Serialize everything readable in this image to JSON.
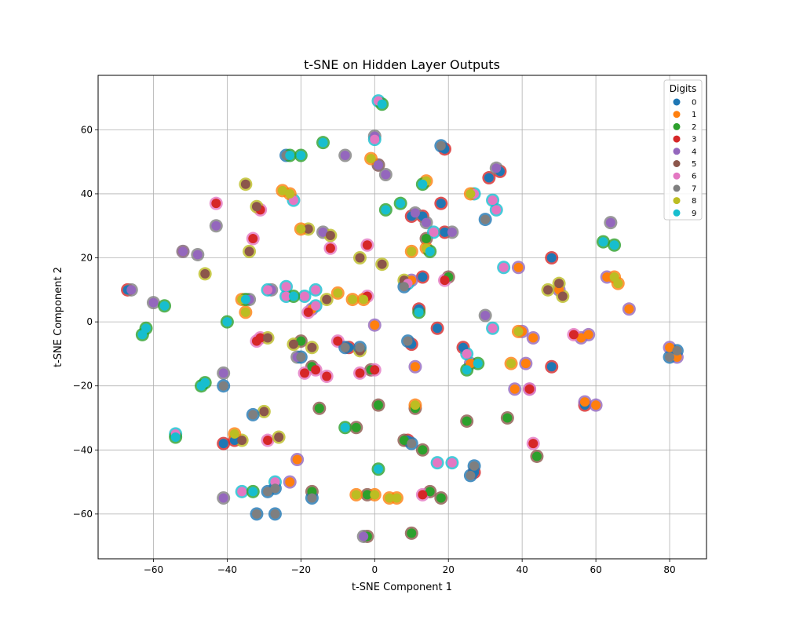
{
  "chart_data": {
    "type": "scatter",
    "title": "t-SNE on Hidden Layer Outputs",
    "xlabel": "t-SNE Component 1",
    "ylabel": "t-SNE Component 2",
    "xlim": [
      -75,
      90
    ],
    "ylim": [
      -74,
      77
    ],
    "xticks": [
      -60,
      -40,
      -20,
      0,
      20,
      40,
      60,
      80
    ],
    "yticks": [
      -60,
      -40,
      -20,
      0,
      20,
      40,
      60
    ],
    "grid": true,
    "legend": {
      "title": "Digits",
      "placement": "top-right"
    },
    "series": [
      {
        "name": "0",
        "color": "#1f77b4",
        "points": [
          [
            -41,
            -38
          ],
          [
            -38,
            -37
          ],
          [
            -7,
            -8
          ],
          [
            10,
            -7
          ],
          [
            9,
            -37
          ],
          [
            18,
            37
          ],
          [
            19,
            54
          ],
          [
            10,
            33
          ],
          [
            13,
            33
          ],
          [
            13,
            14
          ],
          [
            24,
            -8
          ],
          [
            27,
            -47
          ],
          [
            34,
            47
          ],
          [
            31,
            45
          ],
          [
            48,
            20
          ],
          [
            48,
            -14
          ],
          [
            57,
            -26
          ],
          [
            1,
            49
          ],
          [
            -67,
            10
          ],
          [
            12,
            4
          ],
          [
            19,
            28
          ],
          [
            17,
            -2
          ]
        ]
      },
      {
        "name": "1",
        "color": "#ff7f0e",
        "points": [
          [
            -21,
            -43
          ],
          [
            -23,
            -50
          ],
          [
            11,
            -14
          ],
          [
            26,
            -13
          ],
          [
            39,
            17
          ],
          [
            40,
            -3
          ],
          [
            43,
            -5
          ],
          [
            38,
            -21
          ],
          [
            41,
            -13
          ],
          [
            42,
            -21
          ],
          [
            56,
            -5
          ],
          [
            58,
            -4
          ],
          [
            57,
            -25
          ],
          [
            60,
            -26
          ],
          [
            63,
            14
          ],
          [
            69,
            4
          ],
          [
            80,
            -8
          ],
          [
            82,
            -11
          ],
          [
            0,
            -1
          ],
          [
            -17,
            4
          ],
          [
            50,
            10
          ],
          [
            10,
            13
          ]
        ]
      },
      {
        "name": "2",
        "color": "#2ca02c",
        "points": [
          [
            -15,
            -27
          ],
          [
            -17,
            -53
          ],
          [
            -5,
            -33
          ],
          [
            1,
            -26
          ],
          [
            11,
            -27
          ],
          [
            13,
            -40
          ],
          [
            15,
            -53
          ],
          [
            18,
            -55
          ],
          [
            25,
            -31
          ],
          [
            36,
            -30
          ],
          [
            44,
            -42
          ],
          [
            -2,
            -67
          ],
          [
            10,
            -66
          ],
          [
            -17,
            -14
          ],
          [
            -20,
            -6
          ],
          [
            14,
            26
          ],
          [
            20,
            14
          ],
          [
            -1,
            -15
          ],
          [
            -2,
            -54
          ],
          [
            8,
            -37
          ]
        ]
      },
      {
        "name": "3",
        "color": "#d62728",
        "points": [
          [
            -52,
            22
          ],
          [
            -43,
            37
          ],
          [
            -33,
            26
          ],
          [
            -31,
            35
          ],
          [
            -32,
            -6
          ],
          [
            -29,
            -37
          ],
          [
            -19,
            -16
          ],
          [
            -16,
            -15
          ],
          [
            -13,
            -17
          ],
          [
            -18,
            3
          ],
          [
            -12,
            23
          ],
          [
            -2,
            24
          ],
          [
            -4,
            -16
          ],
          [
            0,
            -15
          ],
          [
            -2,
            8
          ],
          [
            13,
            -54
          ],
          [
            19,
            13
          ],
          [
            42,
            -21
          ],
          [
            43,
            -38
          ],
          [
            54,
            -4
          ],
          [
            -10,
            -6
          ],
          [
            -31,
            -5
          ]
        ]
      },
      {
        "name": "4",
        "color": "#9467bd",
        "points": [
          [
            -66,
            10
          ],
          [
            -60,
            6
          ],
          [
            -52,
            22
          ],
          [
            -48,
            21
          ],
          [
            -43,
            30
          ],
          [
            -41,
            -55
          ],
          [
            -41,
            -16
          ],
          [
            -28,
            10
          ],
          [
            -21,
            -11
          ],
          [
            -14,
            28
          ],
          [
            -8,
            52
          ],
          [
            0,
            58
          ],
          [
            1,
            49
          ],
          [
            3,
            46
          ],
          [
            11,
            34
          ],
          [
            14,
            31
          ],
          [
            21,
            28
          ],
          [
            30,
            2
          ],
          [
            33,
            48
          ],
          [
            64,
            31
          ],
          [
            -3,
            -67
          ],
          [
            -34,
            7
          ]
        ]
      },
      {
        "name": "5",
        "color": "#8c564b",
        "points": [
          [
            -35,
            43
          ],
          [
            -32,
            36
          ],
          [
            -46,
            15
          ],
          [
            -34,
            22
          ],
          [
            -29,
            -5
          ],
          [
            -22,
            -7
          ],
          [
            -17,
            -8
          ],
          [
            -12,
            27
          ],
          [
            -18,
            29
          ],
          [
            -13,
            7
          ],
          [
            -4,
            -9
          ],
          [
            2,
            18
          ],
          [
            8,
            13
          ],
          [
            -4,
            20
          ],
          [
            50,
            12
          ],
          [
            51,
            8
          ],
          [
            47,
            10
          ],
          [
            -30,
            -28
          ],
          [
            -26,
            -36
          ],
          [
            -36,
            -37
          ]
        ]
      },
      {
        "name": "6",
        "color": "#e377c2",
        "points": [
          [
            -54,
            -35
          ],
          [
            -36,
            -53
          ],
          [
            -27,
            -50
          ],
          [
            -22,
            38
          ],
          [
            -24,
            8
          ],
          [
            -19,
            8
          ],
          [
            -16,
            10
          ],
          [
            -16,
            5
          ],
          [
            1,
            69
          ],
          [
            0,
            57
          ],
          [
            25,
            -10
          ],
          [
            33,
            35
          ],
          [
            32,
            38
          ],
          [
            27,
            40
          ],
          [
            35,
            17
          ],
          [
            17,
            -44
          ],
          [
            21,
            -44
          ],
          [
            -29,
            10
          ],
          [
            -24,
            11
          ],
          [
            9,
            12
          ],
          [
            32,
            -2
          ],
          [
            16,
            28
          ]
        ]
      },
      {
        "name": "7",
        "color": "#7f7f7f",
        "points": [
          [
            -41,
            -20
          ],
          [
            -33,
            -29
          ],
          [
            -29,
            -53
          ],
          [
            -27,
            -60
          ],
          [
            -27,
            -52
          ],
          [
            -24,
            52
          ],
          [
            -20,
            -11
          ],
          [
            -17,
            -55
          ],
          [
            -8,
            -8
          ],
          [
            -4,
            -8
          ],
          [
            9,
            -6
          ],
          [
            10,
            -38
          ],
          [
            18,
            55
          ],
          [
            27,
            -45
          ],
          [
            26,
            -48
          ],
          [
            82,
            -9
          ],
          [
            80,
            -11
          ],
          [
            -32,
            -60
          ],
          [
            8,
            11
          ],
          [
            30,
            32
          ]
        ]
      },
      {
        "name": "8",
        "color": "#bcbd22",
        "points": [
          [
            -36,
            7
          ],
          [
            -35,
            3
          ],
          [
            -25,
            41
          ],
          [
            -23,
            40
          ],
          [
            -20,
            29
          ],
          [
            -10,
            9
          ],
          [
            -6,
            7
          ],
          [
            -3,
            7
          ],
          [
            -1,
            51
          ],
          [
            0,
            -54
          ],
          [
            4,
            -55
          ],
          [
            6,
            -55
          ],
          [
            10,
            22
          ],
          [
            14,
            44
          ],
          [
            26,
            40
          ],
          [
            37,
            -13
          ],
          [
            39,
            -3
          ],
          [
            65,
            14
          ],
          [
            66,
            12
          ],
          [
            -5,
            -54
          ],
          [
            -38,
            -35
          ],
          [
            11,
            -26
          ],
          [
            14,
            23
          ]
        ]
      },
      {
        "name": "9",
        "color": "#17becf",
        "points": [
          [
            -63,
            -4
          ],
          [
            -62,
            -2
          ],
          [
            -57,
            5
          ],
          [
            -40,
            0
          ],
          [
            -47,
            -20
          ],
          [
            -46,
            -19
          ],
          [
            -35,
            7
          ],
          [
            -23,
            52
          ],
          [
            -20,
            52
          ],
          [
            -22,
            8
          ],
          [
            -14,
            56
          ],
          [
            -8,
            -33
          ],
          [
            2,
            68
          ],
          [
            3,
            35
          ],
          [
            7,
            37
          ],
          [
            12,
            3
          ],
          [
            13,
            43
          ],
          [
            15,
            22
          ],
          [
            25,
            -15
          ],
          [
            28,
            -13
          ],
          [
            62,
            25
          ],
          [
            65,
            24
          ],
          [
            1,
            -46
          ],
          [
            -33,
            -53
          ],
          [
            -54,
            -36
          ]
        ]
      }
    ]
  }
}
